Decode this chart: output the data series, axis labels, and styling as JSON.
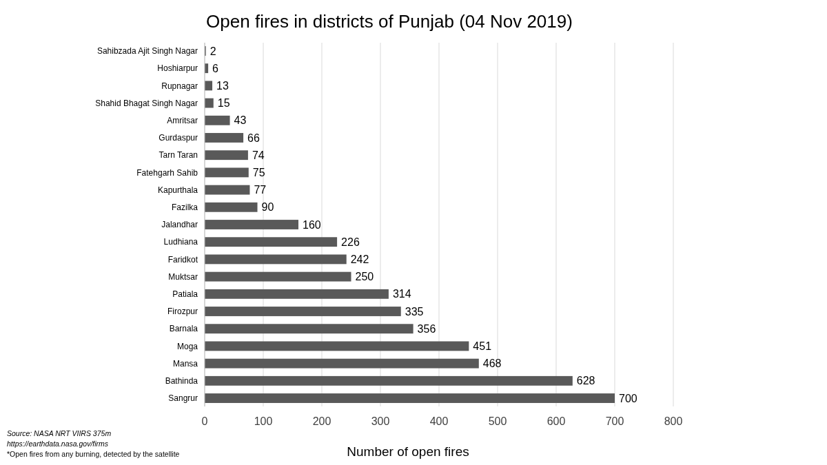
{
  "chart_data": {
    "type": "bar",
    "orientation": "horizontal",
    "title": "Open fires in districts of Punjab (04 Nov 2019)",
    "xlabel": "Number of open fires",
    "categories": [
      "Sahibzada Ajit Singh Nagar",
      "Hoshiarpur",
      "Rupnagar",
      "Shahid Bhagat Singh Nagar",
      "Amritsar",
      "Gurdaspur",
      "Tarn Taran",
      "Fatehgarh Sahib",
      "Kapurthala",
      "Fazilka",
      "Jalandhar",
      "Ludhiana",
      "Faridkot",
      "Muktsar",
      "Patiala",
      "Firozpur",
      "Barnala",
      "Moga",
      "Mansa",
      "Bathinda",
      "Sangrur"
    ],
    "values": [
      2,
      6,
      13,
      15,
      43,
      66,
      74,
      75,
      77,
      90,
      160,
      226,
      242,
      250,
      314,
      335,
      356,
      451,
      468,
      628,
      700
    ],
    "color": "#595959",
    "xlim": [
      0,
      800
    ],
    "xticks": [
      0,
      100,
      200,
      300,
      400,
      500,
      600,
      700,
      800
    ],
    "grid": "x",
    "data_labels": true,
    "annotations": [
      "Source: NASA NRT VIIRS 375m",
      "https://earthdata.nasa.gov/firms",
      "*Open fires from any burning, detected by the satellite"
    ]
  }
}
